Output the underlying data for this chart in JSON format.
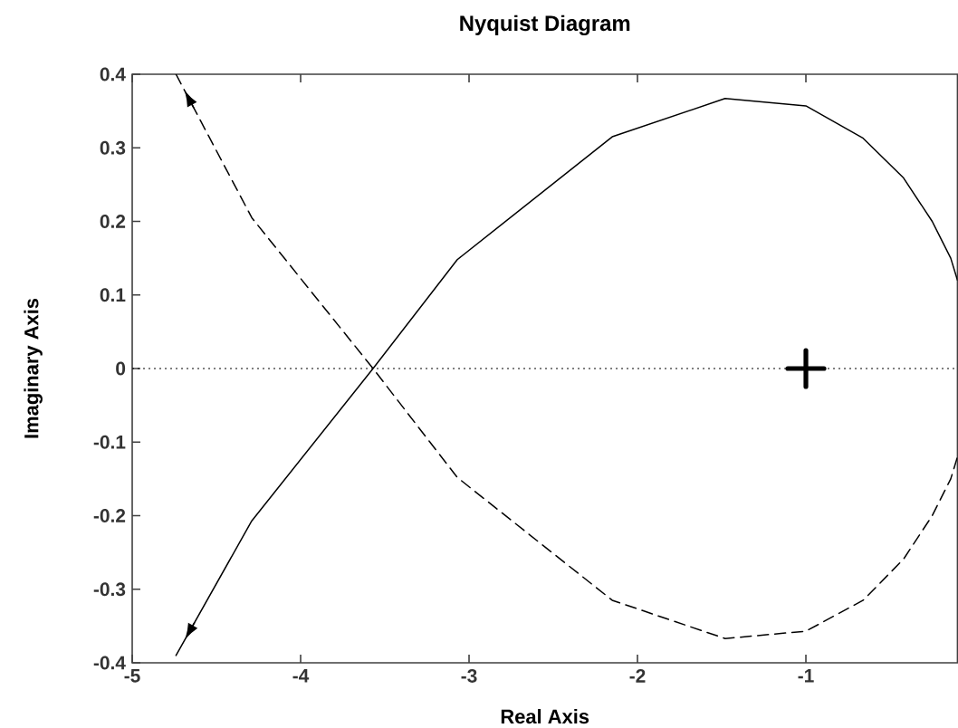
{
  "chart_data": {
    "type": "line",
    "title": "Nyquist Diagram",
    "xlabel": "Real Axis",
    "ylabel": "Imaginary Axis",
    "xlim": [
      -5,
      -0.1
    ],
    "ylim": [
      -0.4,
      0.4
    ],
    "xticks": [
      -5,
      -4,
      -3,
      -2,
      -1
    ],
    "yticks": [
      -0.4,
      -0.3,
      -0.2,
      -0.1,
      0,
      0.1,
      0.2,
      0.3,
      0.4
    ],
    "grid": false,
    "marker": "none",
    "series": [
      {
        "color": "#000000",
        "line_style": "solid",
        "x": [
          -4.74,
          -4.29,
          -3.57,
          -3.07,
          -2.15,
          -1.48,
          -1.0,
          -0.66,
          -0.42,
          -0.25,
          -0.14,
          -0.1
        ],
        "values": [
          -0.39,
          -0.207,
          0,
          0.148,
          0.315,
          0.367,
          0.357,
          0.313,
          0.259,
          0.2,
          0.15,
          0.12
        ]
      },
      {
        "color": "#000000",
        "line_style": "dashed",
        "x": [
          -4.74,
          -4.29,
          -3.57,
          -3.07,
          -2.15,
          -1.48,
          -1.0,
          -0.66,
          -0.42,
          -0.25,
          -0.14,
          -0.1
        ],
        "values": [
          0.4,
          0.205,
          0,
          -0.148,
          -0.315,
          -0.367,
          -0.357,
          -0.315,
          -0.259,
          -0.2,
          -0.15,
          -0.12
        ]
      },
      {
        "marker": "cross",
        "color": "#000000",
        "x": [
          -1
        ],
        "values": [
          0
        ]
      }
    ],
    "ref_lines": [
      {
        "axis": "y",
        "value": 0,
        "line_style": "dotted",
        "color": "#000000"
      }
    ]
  }
}
